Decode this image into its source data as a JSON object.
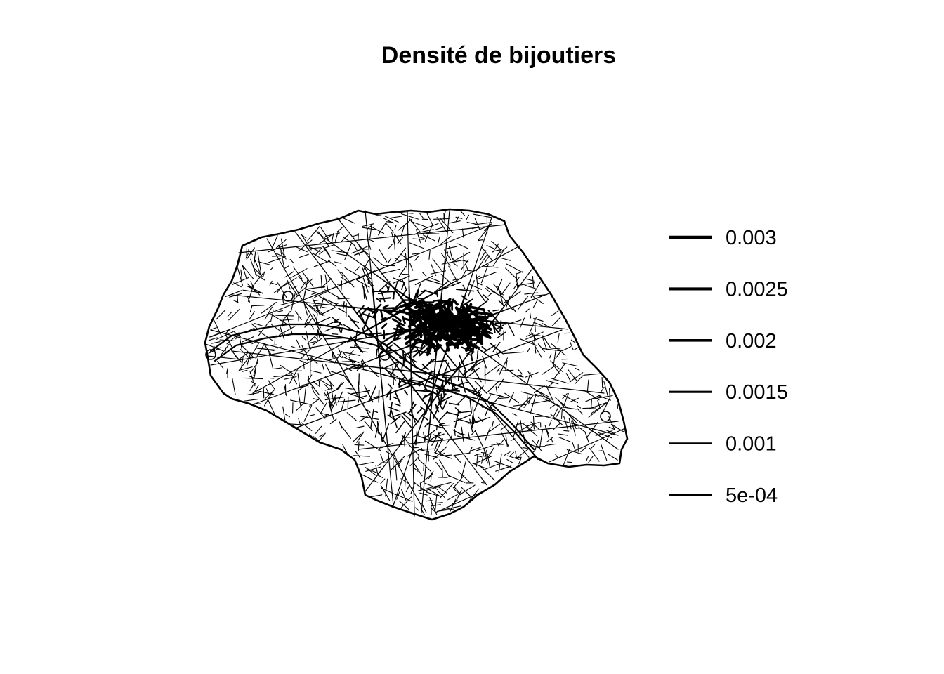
{
  "title": "Densité de bijoutiers",
  "legend": {
    "entries": [
      {
        "label": "0.003",
        "value": 0.003
      },
      {
        "label": "0.0025",
        "value": 0.0025
      },
      {
        "label": "0.002",
        "value": 0.002
      },
      {
        "label": "0.0015",
        "value": 0.0015
      },
      {
        "label": "0.001",
        "value": 0.001
      },
      {
        "label": "5e-04",
        "value": 0.0005
      }
    ]
  },
  "map": {
    "type": "street-network-density",
    "line_color": "#000000"
  }
}
